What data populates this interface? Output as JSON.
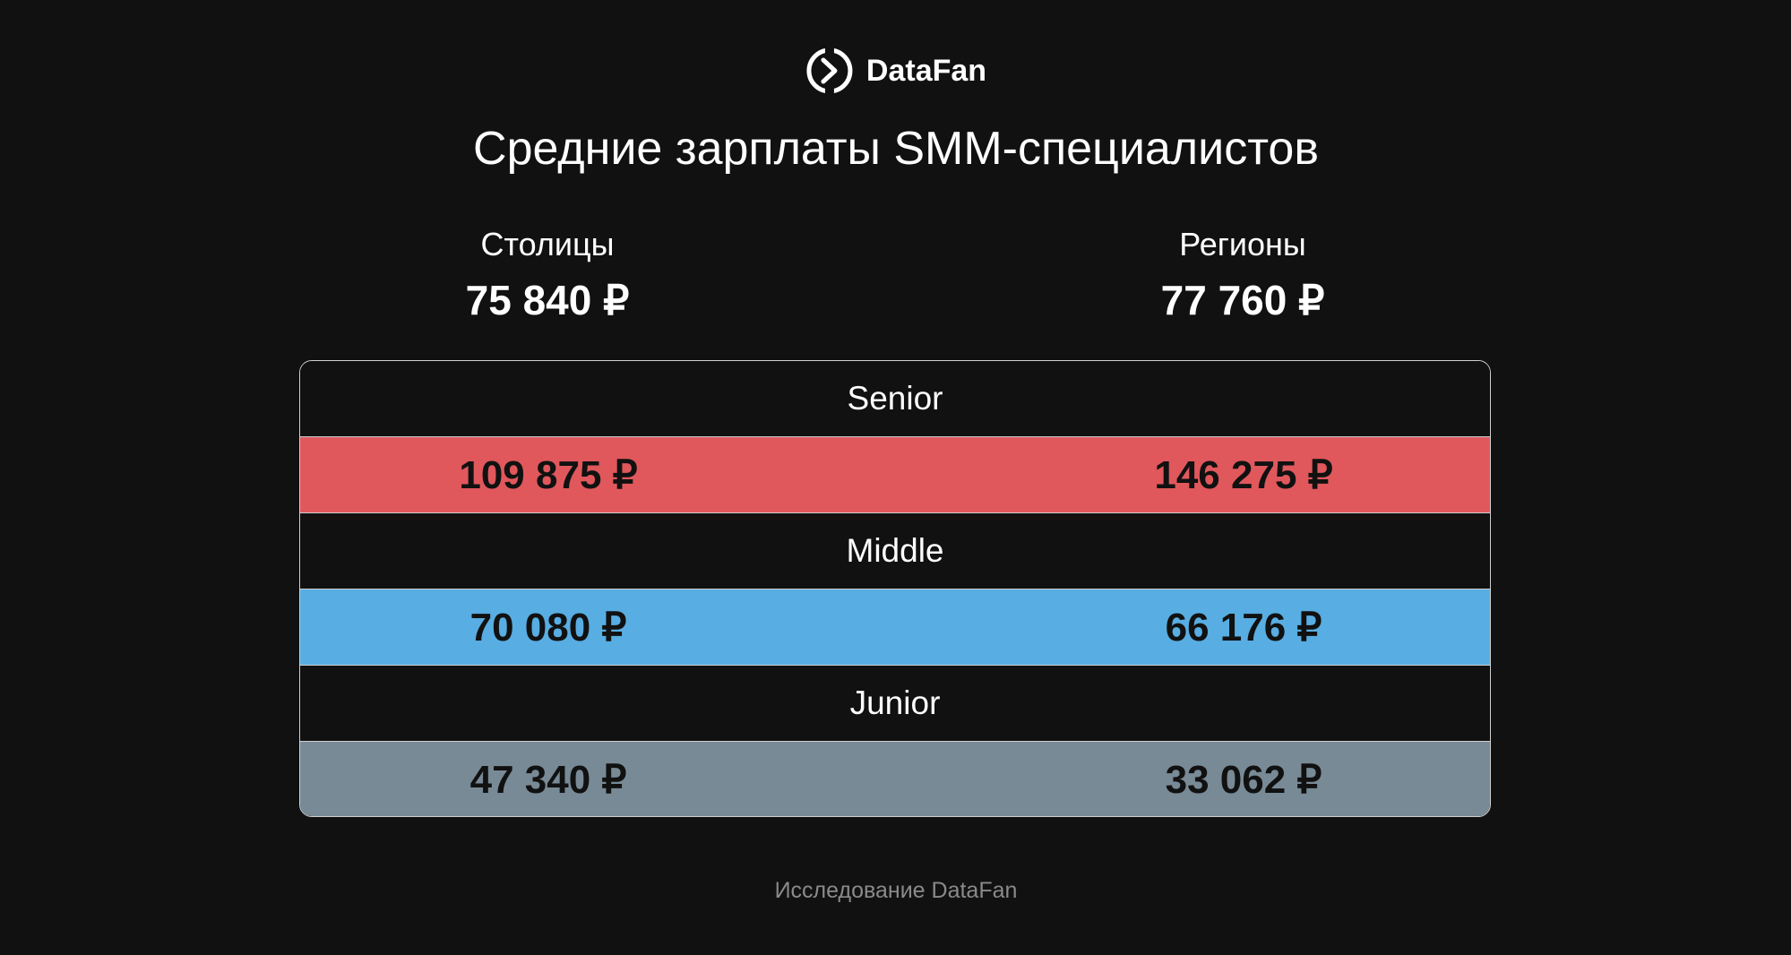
{
  "logo": "DataFan",
  "title": "Средние зарплаты SMM-специалистов",
  "summary": [
    {
      "label": "Столицы",
      "value": "75 840 ₽"
    },
    {
      "label": "Регионы",
      "value": "77 760 ₽"
    }
  ],
  "table": {
    "levels": [
      {
        "name": "Senior",
        "color": "#e0585c",
        "values": [
          "109 875 ₽",
          "146 275 ₽"
        ]
      },
      {
        "name": "Middle",
        "color": "#58ade2",
        "values": [
          "70 080 ₽",
          "66 176 ₽"
        ]
      },
      {
        "name": "Junior",
        "color": "#788a96",
        "values": [
          "47 340 ₽",
          "33 062 ₽"
        ]
      }
    ]
  },
  "footer": "Исследование DataFan"
}
